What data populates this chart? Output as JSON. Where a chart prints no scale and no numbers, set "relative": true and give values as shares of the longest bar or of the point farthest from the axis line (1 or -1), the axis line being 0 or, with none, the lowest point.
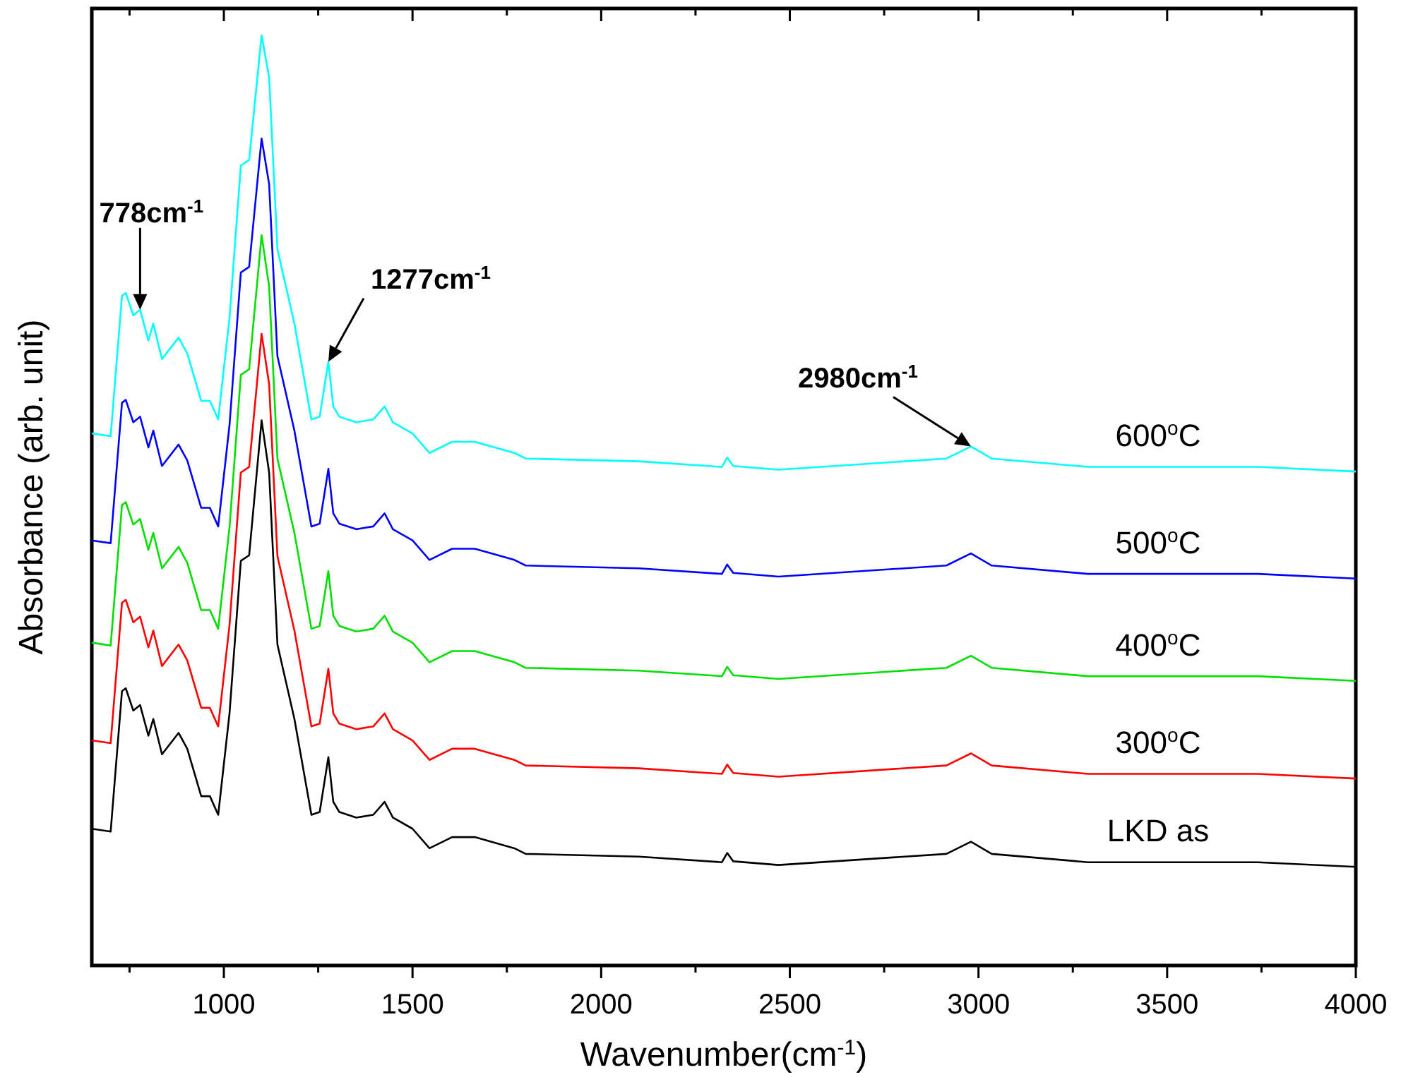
{
  "chart_data": {
    "type": "line",
    "relative": true,
    "xlabel": "Wavenumber(cm$^{-1}$)",
    "ylabel": "Absorbance (arb. unit)",
    "xlim": [
      650,
      4000
    ],
    "xticks": [
      {
        "value": 750,
        "label": null
      },
      1000,
      {
        "value": 1250,
        "label": null
      },
      1500,
      {
        "value": 1750,
        "label": null
      },
      2000,
      {
        "value": 2250,
        "label": null
      },
      2500,
      {
        "value": 2750,
        "label": null
      },
      3000,
      {
        "value": 3250,
        "label": null
      },
      3500,
      {
        "value": 3750,
        "label": null
      },
      4000
    ],
    "x": [
      650,
      700,
      730,
      740,
      760,
      778,
      800,
      813,
      836,
      880,
      903,
      940,
      963,
      985,
      1015,
      1045,
      1067,
      1100,
      1120,
      1142,
      1187,
      1232,
      1254,
      1277,
      1290,
      1306,
      1351,
      1396,
      1426,
      1448,
      1500,
      1545,
      1605,
      1665,
      1770,
      1800,
      2100,
      2320,
      2334,
      2350,
      2470,
      2915,
      2980,
      3035,
      3290,
      3740,
      4000
    ],
    "line_style": "solid",
    "marker": "none",
    "series": [
      {
        "name": "LKD as",
        "color": "#000000",
        "values": [
          0.147,
          0.144,
          0.295,
          0.298,
          0.274,
          0.28,
          0.247,
          0.265,
          0.227,
          0.25,
          0.233,
          0.182,
          0.182,
          0.162,
          0.271,
          0.435,
          0.441,
          0.586,
          0.53,
          0.345,
          0.265,
          0.162,
          0.165,
          0.224,
          0.176,
          0.165,
          0.159,
          0.162,
          0.176,
          0.159,
          0.147,
          0.126,
          0.138,
          0.138,
          0.126,
          0.12,
          0.117,
          0.111,
          0.121,
          0.112,
          0.108,
          0.12,
          0.133,
          0.12,
          0.111,
          0.111,
          0.106
        ]
      },
      {
        "name": "300$^{o}$C",
        "color": "#ff0000",
        "values": [
          0.242,
          0.239,
          0.39,
          0.393,
          0.369,
          0.375,
          0.342,
          0.36,
          0.322,
          0.345,
          0.328,
          0.277,
          0.277,
          0.257,
          0.366,
          0.53,
          0.536,
          0.679,
          0.625,
          0.44,
          0.36,
          0.257,
          0.26,
          0.319,
          0.271,
          0.26,
          0.254,
          0.257,
          0.271,
          0.254,
          0.242,
          0.221,
          0.233,
          0.233,
          0.221,
          0.215,
          0.212,
          0.206,
          0.216,
          0.207,
          0.203,
          0.215,
          0.228,
          0.215,
          0.206,
          0.206,
          0.201
        ]
      },
      {
        "name": "400$^{o}$C",
        "color": "#00e000",
        "values": [
          0.347,
          0.344,
          0.495,
          0.498,
          0.474,
          0.48,
          0.447,
          0.465,
          0.427,
          0.45,
          0.433,
          0.382,
          0.382,
          0.362,
          0.471,
          0.635,
          0.641,
          0.785,
          0.73,
          0.545,
          0.465,
          0.362,
          0.365,
          0.424,
          0.376,
          0.365,
          0.359,
          0.362,
          0.376,
          0.359,
          0.347,
          0.326,
          0.338,
          0.338,
          0.326,
          0.32,
          0.317,
          0.311,
          0.321,
          0.312,
          0.308,
          0.32,
          0.333,
          0.32,
          0.311,
          0.311,
          0.306
        ]
      },
      {
        "name": "500$^{o}$C",
        "color": "#0000ff",
        "values": [
          0.457,
          0.454,
          0.605,
          0.608,
          0.584,
          0.59,
          0.557,
          0.575,
          0.537,
          0.56,
          0.543,
          0.492,
          0.492,
          0.472,
          0.581,
          0.745,
          0.751,
          0.889,
          0.84,
          0.655,
          0.575,
          0.472,
          0.475,
          0.534,
          0.486,
          0.475,
          0.469,
          0.472,
          0.486,
          0.469,
          0.457,
          0.436,
          0.448,
          0.448,
          0.436,
          0.43,
          0.427,
          0.421,
          0.431,
          0.422,
          0.418,
          0.43,
          0.443,
          0.43,
          0.421,
          0.421,
          0.416
        ]
      },
      {
        "name": "600$^{o}$C",
        "color": "#00ffff",
        "values": [
          0.572,
          0.569,
          0.72,
          0.723,
          0.699,
          0.705,
          0.672,
          0.69,
          0.652,
          0.675,
          0.658,
          0.607,
          0.607,
          0.587,
          0.696,
          0.86,
          0.866,
          1.0,
          0.955,
          0.77,
          0.69,
          0.587,
          0.59,
          0.649,
          0.601,
          0.59,
          0.584,
          0.587,
          0.601,
          0.584,
          0.572,
          0.551,
          0.563,
          0.563,
          0.551,
          0.545,
          0.542,
          0.536,
          0.546,
          0.537,
          0.533,
          0.545,
          0.558,
          0.545,
          0.536,
          0.536,
          0.531
        ]
      }
    ],
    "annotations": [
      {
        "text": "778cm$^{-1}$",
        "x": 778,
        "y": 0.705
      },
      {
        "text": "1277cm$^{-1}$",
        "x": 1277,
        "y": 0.649
      },
      {
        "text": "2980cm$^{-1}$",
        "x": 2980,
        "y": 0.558
      }
    ]
  }
}
